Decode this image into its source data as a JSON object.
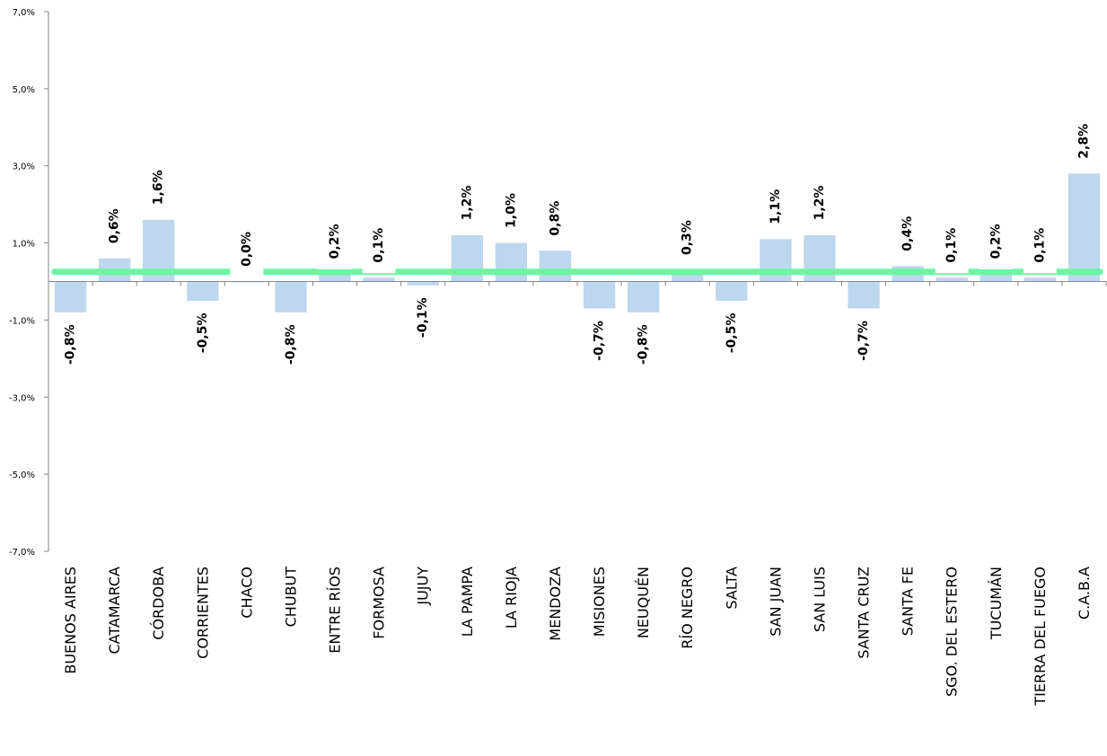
{
  "chart_data": {
    "type": "bar",
    "categories": [
      "BUENOS AIRES",
      "CATAMARCA",
      "CÓRDOBA",
      "CORRIENTES",
      "CHACO",
      "CHUBUT",
      "ENTRE RÍOS",
      "FORMOSA",
      "JUJUY",
      "LA PAMPA",
      "LA RIOJA",
      "MENDOZA",
      "MISIONES",
      "NEUQUÉN",
      "RÍO NEGRO",
      "SALTA",
      "SAN JUAN",
      "SAN LUIS",
      "SANTA CRUZ",
      "SANTA FE",
      "SGO. DEL ESTERO",
      "TUCUMÁN",
      "TIERRA DEL FUEGO",
      "C.A.B.A"
    ],
    "series": [
      {
        "values": [
          -0.8,
          0.6,
          1.6,
          -0.5,
          0.0,
          -0.8,
          0.2,
          0.1,
          -0.1,
          1.2,
          1.0,
          0.8,
          -0.7,
          -0.8,
          0.3,
          -0.5,
          1.1,
          1.2,
          -0.7,
          0.4,
          0.1,
          0.2,
          0.1,
          2.8
        ],
        "data_labels": [
          "-0,8%",
          "0,6%",
          "1,6%",
          "-0,5%",
          "0,0%",
          "-0,8%",
          "0,2%",
          "0,1%",
          "-0,1%",
          "1,2%",
          "1,0%",
          "0,8%",
          "-0,7%",
          "-0,8%",
          "0,3%",
          "-0,5%",
          "1,1%",
          "1,2%",
          "-0,7%",
          "0,4%",
          "0,1%",
          "0,2%",
          "0,1%",
          "2,8%"
        ],
        "color": "#bdd7ee"
      },
      {
        "type": "line",
        "value": 0.25,
        "color": "#6ef5a2"
      }
    ],
    "yticks": [
      7.0,
      5.0,
      3.0,
      1.0,
      -1.0,
      -3.0,
      -5.0,
      -7.0
    ],
    "ytick_labels": [
      "7,0%",
      "5,0%",
      "3,0%",
      "1,0%",
      "-1,0%",
      "-3,0%",
      "-5,0%",
      "-7,0%"
    ],
    "ylim": [
      -7.0,
      7.0
    ],
    "grid": false,
    "legend": "none"
  }
}
